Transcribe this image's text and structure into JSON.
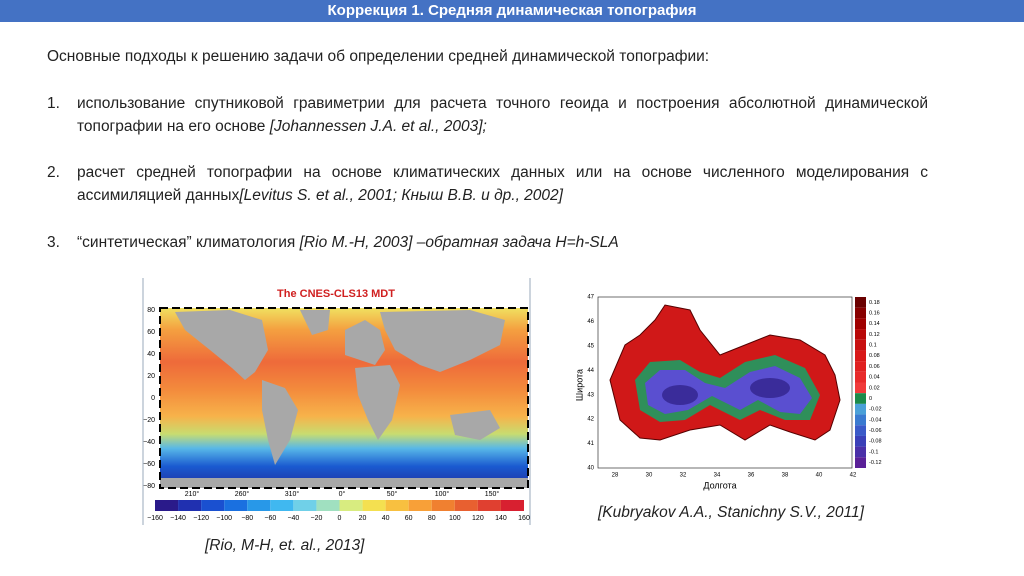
{
  "header": {
    "title": "Коррекция 1. Средняя динамическая топография"
  },
  "intro": "Основные подходы к решению задачи об определении средней динамической топографии:",
  "items": [
    {
      "number": "1.",
      "text": "использование спутниковой гравиметрии для расчета точного геоида и построения абсолютной динамической топографии на его основе ",
      "citation": "[Johannessen J.A. et al., 2003];"
    },
    {
      "number": "2.",
      "text": "расчет средней топографии на основе климатических данных или на основе численного моделирования с ассимиляцией данных",
      "citation": "[Levitus S. et al., 2001; Кныш В.В. и др., 2002]"
    },
    {
      "number": "3.",
      "text": "“синтетическая” климатология ",
      "citation": "[Rio M.-H, 2003] –обратная задача H=h-SLA"
    }
  ],
  "figures": [
    {
      "title": "The CNES-CLS13 MDT",
      "lat_ticks": [
        "80",
        "60",
        "40",
        "20",
        "0",
        "−20",
        "−40",
        "−60",
        "−80"
      ],
      "lon_ticks": [
        "210°",
        "260°",
        "310°",
        "0°",
        "50°",
        "100°",
        "150°"
      ],
      "colorbar_ticks": [
        "−160",
        "−140",
        "−120",
        "−100",
        "−80",
        "−60",
        "−40",
        "−20",
        "0",
        "20",
        "40",
        "60",
        "80",
        "100",
        "120",
        "140",
        "160"
      ],
      "caption": "[Rio, M-H, et. al., 2013]"
    },
    {
      "y_label": "Широта",
      "x_label": "Долгота",
      "y_ticks": [
        "47",
        "46",
        "45",
        "44",
        "43",
        "42",
        "41",
        "40"
      ],
      "x_ticks": [
        "28",
        "30",
        "32",
        "34",
        "36",
        "38",
        "40",
        "42"
      ],
      "colorbar_ticks": [
        "0.18",
        "0.16",
        "0.14",
        "0.12",
        "0.1",
        "0.08",
        "0.06",
        "0.04",
        "0.02",
        "0",
        "-0.02",
        "-0.04",
        "-0.06",
        "-0.08",
        "-0.1",
        "-0.12"
      ],
      "caption": "[Kubryakov A.A., Stanichny S.V., 2011]"
    }
  ]
}
